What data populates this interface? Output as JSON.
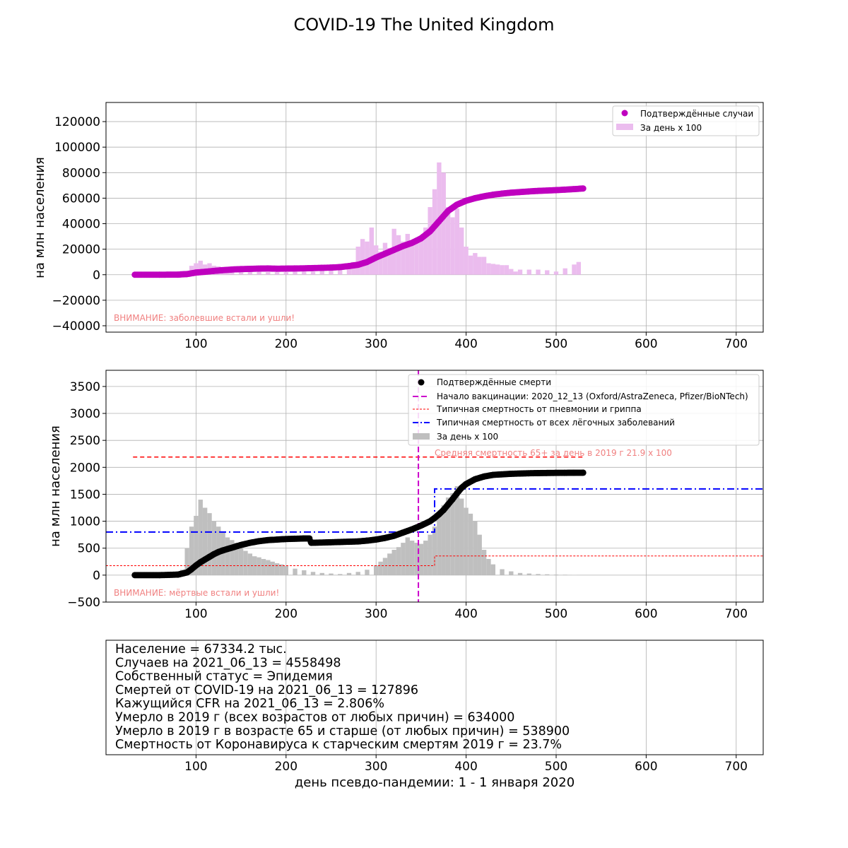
{
  "title": "COVID-19 The United Kingdom",
  "chart_data": [
    {
      "type": "scatter",
      "name": "cases",
      "ylabel": "на млн населения",
      "xlim": [
        0,
        730
      ],
      "ylim": [
        -45000,
        135000
      ],
      "x_ticks": [
        100,
        200,
        300,
        400,
        500,
        600,
        700
      ],
      "y_ticks": [
        -40000,
        -20000,
        0,
        20000,
        40000,
        60000,
        80000,
        100000,
        120000
      ],
      "grid": true,
      "legend_position": "top-right",
      "warning": "ВНИМАНИЕ: заболевшие встали и ушли!",
      "series": [
        {
          "name": "Подтверждённые случаи",
          "kind": "scatter",
          "color": "#bf00bf",
          "x": [
            32,
            60,
            80,
            90,
            100,
            110,
            120,
            130,
            140,
            150,
            160,
            170,
            180,
            190,
            200,
            210,
            220,
            230,
            240,
            250,
            260,
            270,
            280,
            290,
            300,
            310,
            320,
            330,
            340,
            350,
            360,
            370,
            380,
            390,
            400,
            410,
            420,
            430,
            440,
            450,
            460,
            470,
            480,
            490,
            500,
            510,
            520,
            530
          ],
          "y": [
            0,
            0,
            100,
            500,
            1700,
            2300,
            3000,
            3600,
            4100,
            4400,
            4600,
            4800,
            4900,
            4700,
            4800,
            4900,
            5000,
            5200,
            5400,
            5600,
            6000,
            6800,
            7800,
            10000,
            13500,
            16500,
            19500,
            22500,
            25000,
            28500,
            34000,
            42000,
            50000,
            55000,
            58000,
            60000,
            61500,
            62700,
            63600,
            64300,
            64800,
            65300,
            65700,
            66000,
            66300,
            66700,
            67100,
            67600
          ]
        },
        {
          "name": "За день х 100",
          "kind": "bar",
          "color": "#ebbcee",
          "x": [
            85,
            95,
            100,
            105,
            110,
            115,
            120,
            125,
            130,
            135,
            140,
            150,
            160,
            170,
            180,
            190,
            200,
            210,
            220,
            230,
            240,
            250,
            260,
            270,
            275,
            280,
            285,
            290,
            295,
            300,
            305,
            310,
            315,
            320,
            325,
            330,
            335,
            340,
            345,
            350,
            355,
            360,
            365,
            370,
            375,
            380,
            385,
            390,
            395,
            400,
            405,
            410,
            415,
            420,
            425,
            430,
            435,
            440,
            445,
            450,
            455,
            460,
            470,
            480,
            490,
            500,
            510,
            520,
            525
          ],
          "y": [
            3000,
            7000,
            9000,
            11000,
            8000,
            9000,
            7000,
            6500,
            5500,
            5000,
            5000,
            4000,
            3500,
            2500,
            2000,
            2000,
            2000,
            2500,
            2500,
            2500,
            3000,
            4000,
            5000,
            9000,
            10000,
            22000,
            28000,
            26000,
            37000,
            23000,
            18000,
            25000,
            21000,
            36000,
            31000,
            26000,
            32000,
            25000,
            28000,
            27000,
            37000,
            53000,
            67000,
            88000,
            80000,
            53000,
            45000,
            52000,
            37000,
            22000,
            15000,
            17000,
            14000,
            14000,
            9000,
            8500,
            8000,
            7500,
            7500,
            4500,
            2500,
            4000,
            4000,
            4000,
            3500,
            2500,
            5000,
            8000,
            10000
          ]
        }
      ]
    },
    {
      "type": "scatter",
      "name": "deaths",
      "ylabel": "на млн населения",
      "xlim": [
        0,
        730
      ],
      "ylim": [
        -500,
        3800
      ],
      "x_ticks": [
        100,
        200,
        300,
        400,
        500,
        600,
        700
      ],
      "y_ticks": [
        -500,
        0,
        500,
        1000,
        1500,
        2000,
        2500,
        3000,
        3500
      ],
      "grid": true,
      "legend_position": "top-right",
      "warning": "ВНИМАНИЕ: мёртвые встали и ушли!",
      "annotation": "Средняя смертность 65+ за день в 2019 г 21.9 х 100",
      "vaccination_day": 347,
      "series": [
        {
          "name": "Подтверждённые смерти",
          "kind": "scatter",
          "color": "#000000",
          "x": [
            32,
            60,
            80,
            90,
            95,
            100,
            105,
            110,
            115,
            120,
            125,
            130,
            140,
            150,
            160,
            170,
            180,
            190,
            200,
            210,
            220,
            226,
            228,
            240,
            250,
            260,
            270,
            280,
            290,
            300,
            310,
            320,
            330,
            340,
            350,
            360,
            365,
            370,
            375,
            380,
            385,
            390,
            395,
            400,
            410,
            420,
            430,
            440,
            450,
            460,
            470,
            480,
            490,
            500,
            510,
            520,
            530
          ],
          "y": [
            0,
            0,
            10,
            50,
            110,
            180,
            240,
            290,
            340,
            390,
            430,
            460,
            510,
            560,
            600,
            630,
            650,
            660,
            670,
            675,
            680,
            680,
            600,
            605,
            610,
            615,
            620,
            625,
            640,
            660,
            690,
            730,
            790,
            850,
            920,
            1000,
            1060,
            1130,
            1210,
            1310,
            1410,
            1520,
            1620,
            1690,
            1780,
            1830,
            1860,
            1870,
            1880,
            1885,
            1890,
            1893,
            1895,
            1897,
            1898,
            1899,
            1900
          ]
        },
        {
          "name": "За день х 100",
          "kind": "bar",
          "color": "#bfbfbf",
          "x": [
            85,
            90,
            95,
            100,
            105,
            110,
            115,
            120,
            125,
            130,
            135,
            140,
            145,
            150,
            155,
            160,
            165,
            170,
            175,
            180,
            185,
            190,
            195,
            200,
            210,
            220,
            230,
            240,
            250,
            260,
            270,
            280,
            290,
            300,
            305,
            310,
            315,
            320,
            325,
            330,
            335,
            340,
            345,
            350,
            355,
            360,
            365,
            370,
            375,
            380,
            385,
            390,
            395,
            400,
            405,
            410,
            415,
            420,
            425,
            430,
            440,
            450,
            460,
            470,
            480,
            490,
            500,
            510,
            520
          ],
          "y": [
            100,
            500,
            900,
            1100,
            1400,
            1250,
            1150,
            1000,
            900,
            800,
            700,
            650,
            600,
            500,
            450,
            400,
            350,
            330,
            300,
            280,
            250,
            220,
            200,
            170,
            120,
            90,
            60,
            40,
            30,
            20,
            40,
            60,
            100,
            180,
            250,
            320,
            400,
            470,
            520,
            600,
            700,
            640,
            600,
            580,
            640,
            750,
            900,
            1100,
            1300,
            1440,
            1520,
            1650,
            1420,
            1250,
            1140,
            1000,
            750,
            470,
            300,
            200,
            110,
            70,
            40,
            30,
            20,
            15,
            10,
            8,
            5
          ]
        },
        {
          "name": "Начало вакцинации: 2020_12_13 (Oxford/AstraZeneca, Pfizer/BioNTech)",
          "kind": "vline",
          "color": "#cc00cc"
        },
        {
          "name": "Типичная смертность от пневмонии и гриппа",
          "kind": "step",
          "color": "#ff0000",
          "x": [
            0,
            365,
            365,
            730
          ],
          "y": [
            175,
            175,
            355,
            355
          ]
        },
        {
          "name": "Типичная смертность от всех лёгочных заболеваний",
          "kind": "step",
          "color": "#0000ff",
          "x": [
            0,
            365,
            365,
            730
          ],
          "y": [
            800,
            800,
            1600,
            1600
          ]
        },
        {
          "name": "avg65",
          "kind": "hline",
          "color": "#ff0000",
          "x": [
            30,
            530
          ],
          "y": [
            2190,
            2190
          ]
        }
      ]
    }
  ],
  "info": {
    "lines": [
      "Население = 67334.2 тыс.",
      "Случаев на 2021_06_13 = 4558498",
      "Собственный статус = Эпидемия",
      "Смертей от COVID-19 на 2021_06_13 = 127896",
      "Кажущийся CFR на 2021_06_13 = 2.806%",
      "Умерло в 2019 г (всех возрастов от любых причин) = 634000",
      "Умерло в 2019 г в возрасте 65 и старше (от любых причин) = 538900",
      "Смертность от Коронавируса к старческим смертям 2019 г = 23.7%"
    ],
    "xlabel": "день псевдо-пандемии: 1 - 1 января 2020",
    "x_ticks": [
      100,
      200,
      300,
      400,
      500,
      600,
      700
    ]
  }
}
